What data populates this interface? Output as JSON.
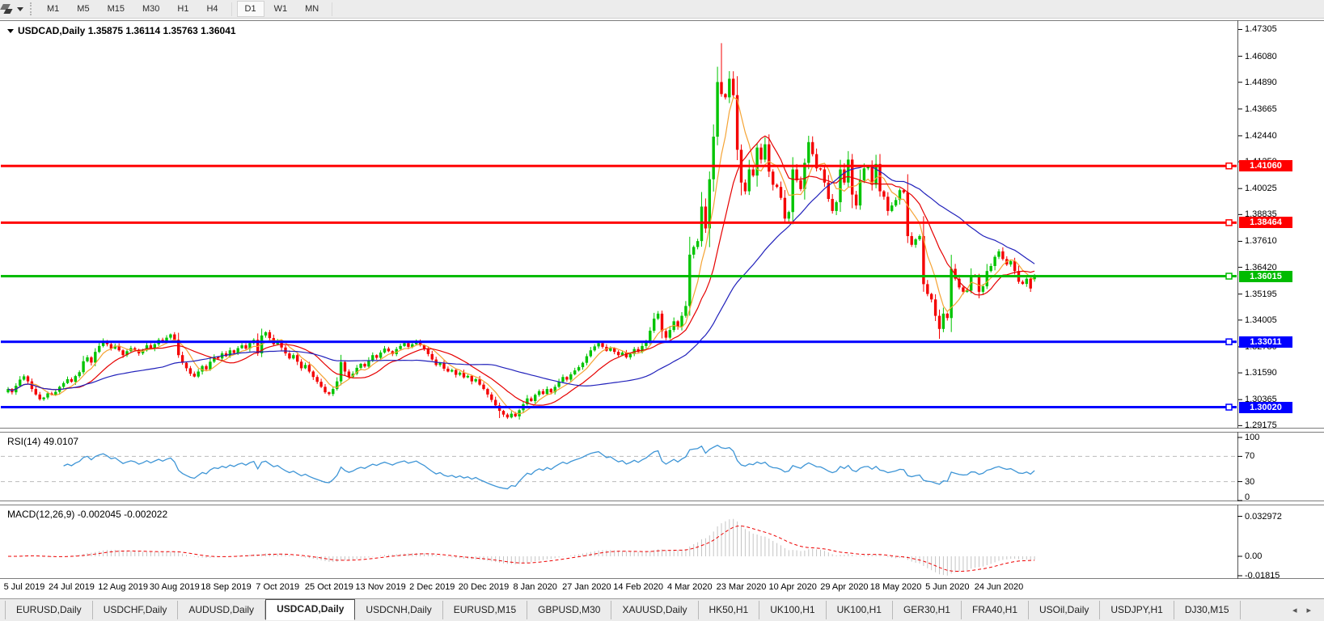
{
  "toolbar": {
    "timeframes": [
      "M1",
      "M5",
      "M15",
      "M30",
      "H1",
      "H4",
      "D1",
      "W1",
      "MN"
    ],
    "active_timeframe": "D1"
  },
  "chart": {
    "title": "USDCAD,Daily",
    "ohlc": " 1.35875 1.36114 1.35763 1.36041"
  },
  "rsi_panel": {
    "name": "RSI(14)",
    "value": "49.0107",
    "axis_labels": [
      "100",
      "70",
      "30",
      "0"
    ],
    "axis_values": [
      100,
      70,
      30,
      0
    ],
    "levels": [
      70,
      30
    ],
    "line_color": "#3e95d6"
  },
  "macd_panel": {
    "name": "MACD(12,26,9)",
    "values": "-0.002045 -0.002022",
    "axis_labels": [
      "0.032972",
      "0.00",
      "-0.01815"
    ],
    "axis_values": [
      0.032972,
      0,
      -0.01815
    ],
    "histogram_color": "#c4c4c4",
    "signal_color": "#ee0000"
  },
  "price_axis": {
    "ticks": [
      "1.47305",
      "1.46080",
      "1.44890",
      "1.43665",
      "1.42440",
      "1.41250",
      "1.40025",
      "1.38835",
      "1.37610",
      "1.36420",
      "1.35195",
      "1.34005",
      "1.32780",
      "1.31590",
      "1.30365",
      "1.29175"
    ]
  },
  "tabs": {
    "items": [
      "EURUSD,Daily",
      "USDCHF,Daily",
      "AUDUSD,Daily",
      "USDCAD,Daily",
      "USDCNH,Daily",
      "EURUSD,M15",
      "GBPUSD,M30",
      "XAUUSD,Daily",
      "HK50,H1",
      "UK100,H1",
      "UK100,H1",
      "GER30,H1",
      "FRA40,H1",
      "USOil,Daily",
      "USDJPY,H1",
      "DJ30,M15"
    ],
    "active_index": 3,
    "scroll_left": "◂",
    "scroll_right": "▸"
  },
  "chart_data": {
    "type": "candlestick",
    "symbol": "USDCAD",
    "timeframe": "Daily",
    "current_bar": {
      "open": 1.35875,
      "high": 1.36114,
      "low": 1.35763,
      "close": 1.36041
    },
    "ylim": [
      1.2904,
      1.4773
    ],
    "up_color": "#00c400",
    "down_color": "#f40000",
    "x_labels": [
      "5 Jul 2019",
      "24 Jul 2019",
      "12 Aug 2019",
      "30 Aug 2019",
      "18 Sep 2019",
      "7 Oct 2019",
      "25 Oct 2019",
      "13 Nov 2019",
      "2 Dec 2019",
      "20 Dec 2019",
      "8 Jan 2020",
      "27 Jan 2020",
      "14 Feb 2020",
      "4 Mar 2020",
      "23 Mar 2020",
      "10 Apr 2020",
      "29 Apr 2020",
      "18 May 2020",
      "5 Jun 2020",
      "24 Jun 2020"
    ],
    "x_tick_first_index": 3,
    "x_tick_step": 13,
    "open_equals_previous_close": true,
    "closes": [
      1.3085,
      1.307,
      1.31,
      1.3128,
      1.3143,
      1.312,
      1.3085,
      1.306,
      1.3038,
      1.3046,
      1.3065,
      1.3058,
      1.3072,
      1.3095,
      1.3112,
      1.313,
      1.3118,
      1.3144,
      1.3162,
      1.3212,
      1.323,
      1.3206,
      1.3255,
      1.3282,
      1.3305,
      1.329,
      1.327,
      1.3283,
      1.3262,
      1.324,
      1.3258,
      1.3272,
      1.3265,
      1.3248,
      1.3262,
      1.3285,
      1.327,
      1.329,
      1.331,
      1.3298,
      1.332,
      1.3335,
      1.331,
      1.324,
      1.3205,
      1.318,
      1.3155,
      1.3142,
      1.3165,
      1.319,
      1.3175,
      1.321,
      1.3232,
      1.3225,
      1.3248,
      1.3235,
      1.3262,
      1.325,
      1.3272,
      1.3285,
      1.327,
      1.3295,
      1.331,
      1.3248,
      1.333,
      1.3345,
      1.3318,
      1.329,
      1.3305,
      1.3275,
      1.3248,
      1.3225,
      1.324,
      1.321,
      1.318,
      1.3195,
      1.3165,
      1.314,
      1.3118,
      1.3095,
      1.307,
      1.3062,
      1.3085,
      1.312,
      1.3208,
      1.3165,
      1.314,
      1.3155,
      1.3182,
      1.32,
      1.3188,
      1.3215,
      1.324,
      1.3228,
      1.3252,
      1.327,
      1.3258,
      1.3245,
      1.3268,
      1.3282,
      1.3295,
      1.3278,
      1.329,
      1.3302,
      1.3285,
      1.327,
      1.3245,
      1.322,
      1.3195,
      1.3205,
      1.3178,
      1.3165,
      1.3172,
      1.315,
      1.316,
      1.3138,
      1.3145,
      1.312,
      1.313,
      1.3105,
      1.3085,
      1.306,
      1.3035,
      1.301,
      1.2985,
      1.2968,
      1.2955,
      1.2972,
      1.296,
      1.2988,
      1.3015,
      1.3042,
      1.303,
      1.3058,
      1.3075,
      1.3062,
      1.3085,
      1.307,
      1.3095,
      1.3118,
      1.314,
      1.3128,
      1.3152,
      1.317,
      1.3185,
      1.3205,
      1.3235,
      1.3262,
      1.328,
      1.3295,
      1.3278,
      1.326,
      1.3272,
      1.3255,
      1.324,
      1.3252,
      1.323,
      1.3245,
      1.3268,
      1.3255,
      1.3282,
      1.3305,
      1.3352,
      1.3407,
      1.343,
      1.335,
      1.332,
      1.3355,
      1.3395,
      1.337,
      1.342,
      1.3465,
      1.37,
      1.3735,
      1.3762,
      1.392,
      1.382,
      1.4045,
      1.424,
      1.449,
      1.4435,
      1.442,
      1.4505,
      1.443,
      1.418,
      1.403,
      1.399,
      1.409,
      1.4062,
      1.419,
      1.4135,
      1.4205,
      1.408,
      1.402,
      1.401,
      1.396,
      1.3865,
      1.3895,
      1.409,
      1.404,
      1.4,
      1.412,
      1.4215,
      1.416,
      1.4095,
      1.409,
      1.403,
      1.3955,
      1.39,
      1.394,
      1.409,
      1.403,
      1.4135,
      1.3975,
      1.3925,
      1.404,
      1.4095,
      1.4105,
      1.402,
      1.4115,
      1.399,
      1.3965,
      1.39,
      1.3925,
      1.395,
      1.3995,
      1.3985,
      1.3785,
      1.3745,
      1.377,
      1.3785,
      1.3565,
      1.352,
      1.3495,
      1.342,
      1.336,
      1.343,
      1.341,
      1.3635,
      1.359,
      1.355,
      1.353,
      1.3535,
      1.3605,
      1.36,
      1.353,
      1.3555,
      1.3625,
      1.3648,
      1.369,
      1.3715,
      1.368,
      1.3655,
      1.367,
      1.3625,
      1.3576,
      1.3566,
      1.359,
      1.3545,
      1.36041
    ],
    "wick_overrides": {
      "124": {
        "l": 1.2952
      },
      "179": {
        "h": 1.456
      },
      "180": {
        "h": 1.4668
      },
      "182": {
        "h": 1.454
      },
      "235": {
        "l": 1.3315
      },
      "259": {
        "o": 1.35875,
        "h": 1.36114,
        "l": 1.35763
      }
    },
    "moving_averages": [
      {
        "period": 6,
        "color": "#f5a333"
      },
      {
        "period": 14,
        "color": "#e60000"
      },
      {
        "period": 40,
        "color": "#2121bb"
      }
    ],
    "hlines": [
      {
        "price": 1.4106,
        "label": "1.41060",
        "color": "#ff0000"
      },
      {
        "price": 1.38464,
        "label": "1.38464",
        "color": "#ff0000"
      },
      {
        "price": 1.36015,
        "label": "1.36015",
        "color": "#00bb00"
      },
      {
        "price": 1.33011,
        "label": "1.33011",
        "color": "#0000ff"
      },
      {
        "price": 1.3002,
        "label": "1.30020",
        "color": "#0000ff"
      }
    ]
  }
}
